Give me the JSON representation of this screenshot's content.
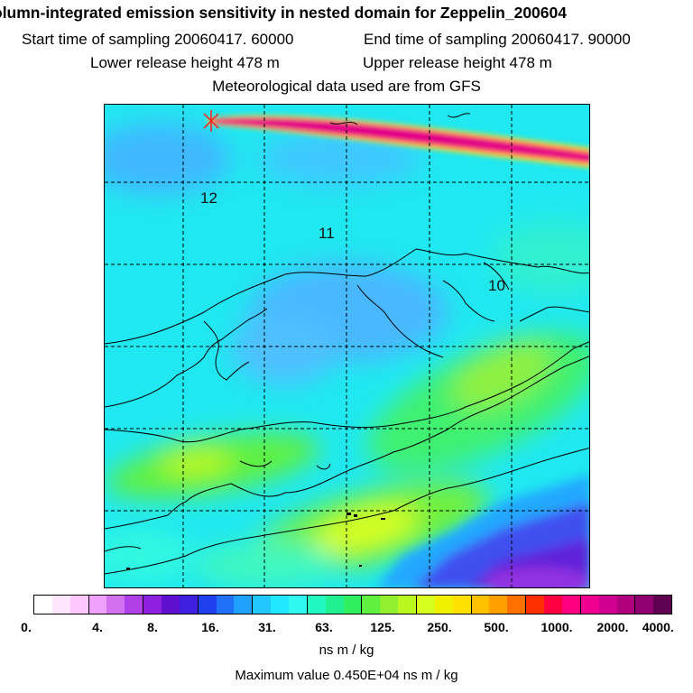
{
  "title": {
    "line1": "olumn-integrated emission sensitivity in nested domain for Zeppelin_200604",
    "start": "Start time of sampling 20060417. 60000",
    "end": "End time of sampling 20060417. 90000",
    "lower": "Lower release height  478 m",
    "upper": "Upper release height  478 m",
    "met": "Meteorological data used are from GFS"
  },
  "map": {
    "grid_labels": [
      "12",
      "11",
      "10"
    ]
  },
  "colorbar": {
    "ticks": [
      "0.",
      "4.",
      "8.",
      "16.",
      "31.",
      "63.",
      "125.",
      "250.",
      "500.",
      "1000.",
      "2000.",
      "4000."
    ],
    "colors": [
      "#ffffff",
      "#ffe6ff",
      "#ffc8ff",
      "#f0a0ff",
      "#d070f0",
      "#b040e8",
      "#9020e0",
      "#6010d0",
      "#4020e0",
      "#2040f0",
      "#2070f8",
      "#20a0ff",
      "#20c8ff",
      "#20e8ff",
      "#30f8f0",
      "#20f8c0",
      "#20f090",
      "#30f060",
      "#60f040",
      "#90f030",
      "#b8f820",
      "#d8ff20",
      "#f0f000",
      "#ffe000",
      "#ffc000",
      "#ffa000",
      "#ff7000",
      "#ff3000",
      "#ff0040",
      "#ff0080",
      "#f00090",
      "#d00090",
      "#b00080",
      "#900070",
      "#600050"
    ],
    "unit": "ns m / kg",
    "max_label": "Maximum value  0.450E+04 ns m / kg"
  }
}
